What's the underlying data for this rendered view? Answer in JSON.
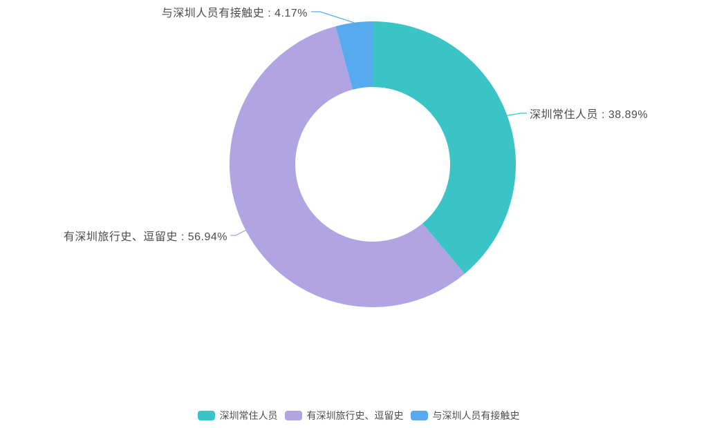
{
  "chart_data": {
    "type": "pie",
    "subtype": "donut",
    "title": "",
    "unit": "%",
    "total": 100,
    "legend_position": "bottom",
    "label_color": "#4d4d4d",
    "background_color": "#ffffff",
    "hole_color": "#ffffff",
    "start_angle_deg": 0,
    "direction": "clockwise",
    "series": [
      {
        "name": "深圳常住人员",
        "value": 38.89,
        "color": "#3bc4c6",
        "callout": "深圳常住人员 : 38.89%"
      },
      {
        "name": "有深圳旅行史、逗留史",
        "value": 56.94,
        "color": "#b1a4e2",
        "callout": "有深圳旅行史、逗留史 : 56.94%"
      },
      {
        "name": "与深圳人员有接触史",
        "value": 4.17,
        "color": "#57aaee",
        "callout": "与深圳人员有接触史 : 4.17%"
      }
    ]
  }
}
